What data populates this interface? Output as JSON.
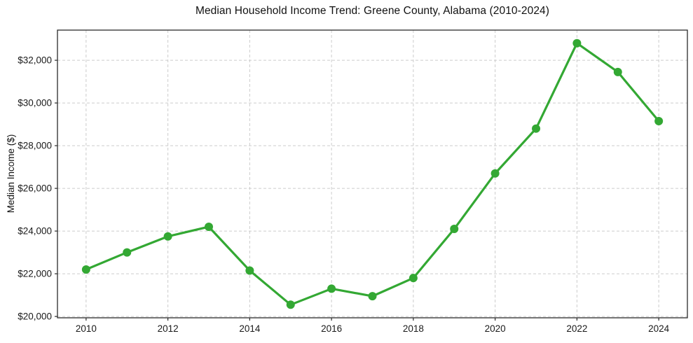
{
  "chart": {
    "title": "Median Household Income Trend: Greene County, Alabama (2010-2024)",
    "ylabel": "Median Income ($)"
  },
  "chart_data": {
    "type": "line",
    "title": "Median Household Income Trend: Greene County, Alabama (2010-2024)",
    "xlabel": "",
    "ylabel": "Median Income ($)",
    "x": [
      2010,
      2011,
      2012,
      2013,
      2014,
      2015,
      2016,
      2017,
      2018,
      2019,
      2020,
      2021,
      2022,
      2023,
      2024
    ],
    "series": [
      {
        "name": "Median Household Income",
        "values": [
          22200,
          23000,
          23750,
          24200,
          22150,
          20550,
          21300,
          20950,
          21800,
          24100,
          26700,
          28800,
          32800,
          31450,
          29150
        ]
      }
    ],
    "xticks": [
      {
        "value": 2010,
        "label": "2010"
      },
      {
        "value": 2012,
        "label": "2012"
      },
      {
        "value": 2014,
        "label": "2014"
      },
      {
        "value": 2016,
        "label": "2016"
      },
      {
        "value": 2018,
        "label": "2018"
      },
      {
        "value": 2020,
        "label": "2020"
      },
      {
        "value": 2022,
        "label": "2022"
      },
      {
        "value": 2024,
        "label": "2024"
      }
    ],
    "yticks": [
      {
        "value": 20000,
        "label": "$20,000"
      },
      {
        "value": 22000,
        "label": "$22,000"
      },
      {
        "value": 24000,
        "label": "$24,000"
      },
      {
        "value": 26000,
        "label": "$26,000"
      },
      {
        "value": 28000,
        "label": "$28,000"
      },
      {
        "value": 30000,
        "label": "$30,000"
      },
      {
        "value": 32000,
        "label": "$32,000"
      }
    ],
    "xlim": [
      2009.3,
      2024.7
    ],
    "ylim": [
      19937,
      33413
    ],
    "grid": true,
    "legend": false,
    "colors": {
      "line": "#33a833",
      "marker": "#33a833",
      "grid": "#cccccc",
      "spine": "#2b2b2b",
      "tick_label": "#1a1a1a",
      "background": "#ffffff"
    }
  }
}
